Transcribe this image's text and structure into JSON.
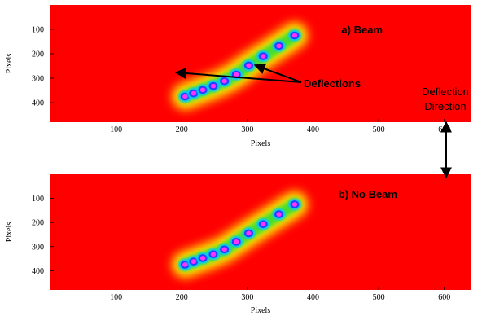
{
  "figure": {
    "side_label_line1": "Deflection",
    "side_label_line2": "Direction",
    "colors": {
      "background_red": "#ff0000",
      "halo_yellow": "#ffff00",
      "halo_green": "#33dd33",
      "spot_cyan": "#00c8ff",
      "spot_blue": "#2040ff",
      "spot_magenta": "#ff33ff",
      "annotation_arrow": "#000000"
    }
  },
  "panels": [
    {
      "id": "beam",
      "title": "a) Beam",
      "annotation": "Deflections",
      "xlabel": "Pixels",
      "ylabel": "Pixels",
      "xticks": [
        "100",
        "200",
        "300",
        "400",
        "500",
        "600"
      ],
      "yticks": [
        "100",
        "200",
        "300",
        "400"
      ]
    },
    {
      "id": "no_beam",
      "title": "b) No Beam",
      "annotation": "",
      "xlabel": "Pixels",
      "ylabel": "Pixels",
      "xticks": [
        "100",
        "200",
        "300",
        "400",
        "500",
        "600"
      ],
      "yticks": [
        "100",
        "200",
        "300",
        "400"
      ]
    }
  ],
  "chart_data": [
    {
      "type": "heatmap",
      "title": "a) Beam",
      "xlabel": "Pixels",
      "ylabel": "Pixels",
      "xlim": [
        0,
        640
      ],
      "ylim": [
        0,
        480
      ],
      "y_axis_inverted": true,
      "spots": [
        {
          "x": 205,
          "y": 375
        },
        {
          "x": 218,
          "y": 362
        },
        {
          "x": 232,
          "y": 348
        },
        {
          "x": 248,
          "y": 332
        },
        {
          "x": 265,
          "y": 312
        },
        {
          "x": 283,
          "y": 285
        },
        {
          "x": 302,
          "y": 248
        },
        {
          "x": 324,
          "y": 210
        },
        {
          "x": 348,
          "y": 168
        },
        {
          "x": 372,
          "y": 125
        }
      ],
      "annotations": [
        "Deflections"
      ]
    },
    {
      "type": "heatmap",
      "title": "b) No Beam",
      "xlabel": "Pixels",
      "ylabel": "Pixels",
      "xlim": [
        0,
        640
      ],
      "ylim": [
        0,
        480
      ],
      "y_axis_inverted": true,
      "spots": [
        {
          "x": 205,
          "y": 375
        },
        {
          "x": 218,
          "y": 362
        },
        {
          "x": 232,
          "y": 348
        },
        {
          "x": 248,
          "y": 332
        },
        {
          "x": 265,
          "y": 312
        },
        {
          "x": 283,
          "y": 280
        },
        {
          "x": 302,
          "y": 245
        },
        {
          "x": 324,
          "y": 207
        },
        {
          "x": 348,
          "y": 166
        },
        {
          "x": 372,
          "y": 125
        }
      ],
      "annotations": []
    }
  ]
}
